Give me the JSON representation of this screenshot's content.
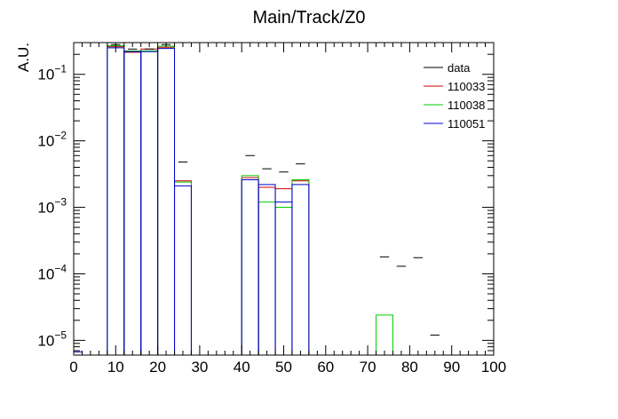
{
  "chart_data": {
    "type": "histogram",
    "title": "Main/Track/Z0",
    "ylabel": "A.U.",
    "xlabel": "",
    "xlim": [
      0,
      100
    ],
    "ylim": [
      6e-06,
      0.3
    ],
    "yscale": "log",
    "grid": false,
    "legend_position": "top-right",
    "bin_width": 4,
    "x_ticks": [
      0,
      10,
      20,
      30,
      40,
      50,
      60,
      70,
      80,
      90,
      100
    ],
    "y_ticks": [
      {
        "value": 1e-05,
        "mantissa": "10",
        "exp": "−5"
      },
      {
        "value": 0.0001,
        "mantissa": "10",
        "exp": "−4"
      },
      {
        "value": 0.001,
        "mantissa": "10",
        "exp": "−3"
      },
      {
        "value": 0.01,
        "mantissa": "10",
        "exp": "−2"
      },
      {
        "value": 0.1,
        "mantissa": "10",
        "exp": "−1"
      }
    ],
    "series": [
      {
        "name": "data",
        "color": "#000000",
        "style": "markers",
        "points": [
          [
            10,
            0.28
          ],
          [
            14,
            0.24
          ],
          [
            18,
            0.24
          ],
          [
            22,
            0.28
          ],
          [
            26,
            0.0048
          ],
          [
            42,
            0.006
          ],
          [
            46,
            0.0038
          ],
          [
            50,
            0.0034
          ],
          [
            54,
            0.0045
          ],
          [
            74,
            0.00018
          ],
          [
            78,
            0.00013
          ],
          [
            82,
            0.000175
          ],
          [
            86,
            1.2e-05
          ]
        ]
      },
      {
        "name": "110033",
        "color": "#cc0000",
        "style": "hist",
        "points": [
          [
            10,
            0.26
          ],
          [
            14,
            0.215
          ],
          [
            18,
            0.24
          ],
          [
            22,
            0.255
          ],
          [
            26,
            0.0025
          ],
          [
            42,
            0.0028
          ],
          [
            46,
            0.002
          ],
          [
            50,
            0.0019
          ],
          [
            54,
            0.0025
          ]
        ]
      },
      {
        "name": "110038",
        "color": "#00cc00",
        "style": "hist",
        "points": [
          [
            10,
            0.27
          ],
          [
            14,
            0.225
          ],
          [
            18,
            0.225
          ],
          [
            22,
            0.265
          ],
          [
            26,
            0.0024
          ],
          [
            42,
            0.003
          ],
          [
            46,
            0.0012
          ],
          [
            50,
            0.001
          ],
          [
            54,
            0.0026
          ],
          [
            74,
            2.4e-05
          ]
        ]
      },
      {
        "name": "110051",
        "color": "#0000cc",
        "style": "hist",
        "points": [
          [
            10,
            0.25
          ],
          [
            14,
            0.22
          ],
          [
            18,
            0.22
          ],
          [
            22,
            0.245
          ],
          [
            26,
            0.0021
          ],
          [
            42,
            0.0026
          ],
          [
            46,
            0.0022
          ],
          [
            50,
            0.0012
          ],
          [
            54,
            0.0022
          ]
        ]
      }
    ],
    "data_extra": {
      "low_edge_bar_value": 6.7e-06
    }
  }
}
